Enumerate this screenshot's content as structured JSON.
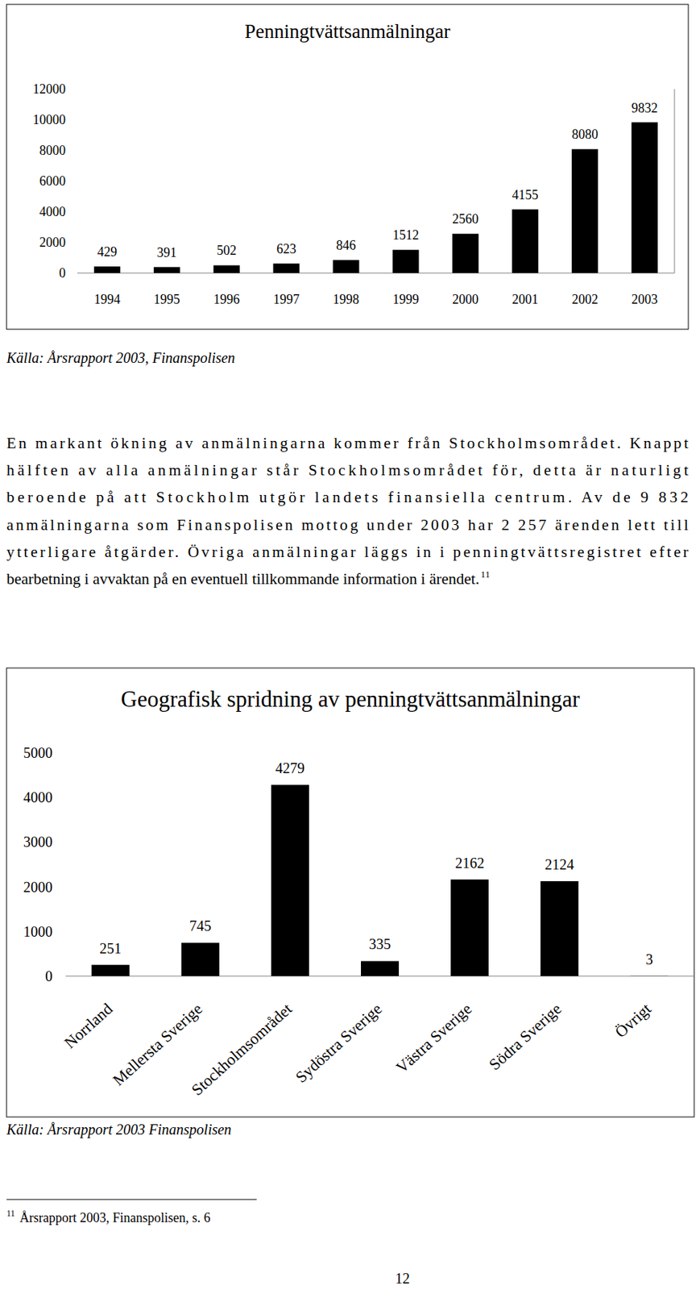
{
  "chart_data": [
    {
      "type": "bar",
      "title": "Penningtvättsanmälningar",
      "categories": [
        "1994",
        "1995",
        "1996",
        "1997",
        "1998",
        "1999",
        "2000",
        "2001",
        "2002",
        "2003"
      ],
      "values": [
        429,
        391,
        502,
        623,
        846,
        1512,
        2560,
        4155,
        8080,
        9832
      ],
      "color": "#000000",
      "ylim": [
        0,
        12000
      ],
      "yticks": [
        0,
        2000,
        4000,
        6000,
        8000,
        10000,
        12000
      ],
      "grid": false,
      "data_labels": true,
      "annotations": [
        "Källa: Årsrapport 2003, Finanspolisen"
      ]
    },
    {
      "type": "bar",
      "title": "Geografisk spridning av penningtvättsanmälningar",
      "categories": [
        "Norrland",
        "Mellersta Sverige",
        "Stockholmsområdet",
        "Sydöstra Sverige",
        "Västra Sverige",
        "Södra Sverige",
        "Övrigt"
      ],
      "values": [
        251,
        745,
        4279,
        335,
        2162,
        2124,
        3
      ],
      "color": "#000000",
      "ylim": [
        0,
        5000
      ],
      "yticks": [
        0,
        1000,
        2000,
        3000,
        4000,
        5000
      ],
      "grid": false,
      "data_labels": true,
      "annotations": [
        "Källa: Årsrapport 2003 Finanspolisen"
      ]
    }
  ],
  "document": {
    "paragraph_lines": [
      "En markant ökning av anmälningarna kommer från Stockholmsområdet. Knappt",
      "hälften av alla anmälningar står Stockholmsområdet för, detta är naturligt",
      "beroende på att Stockholm utgör landets finansiella centrum. Av de 9 832",
      "anmälningarna som Finanspolisen mottog under 2003 har 2 257 ärenden lett till",
      "ytterligare åtgärder. Övriga anmälningar läggs in i penningtvättsregistret efter",
      "bearbetning i avvaktan på en eventuell tillkommande information i ärendet."
    ],
    "footnote_ref": "11",
    "footnote": {
      "number": "11",
      "text": "Årsrapport 2003, Finanspolisen, s. 6"
    },
    "page_number": "12"
  }
}
